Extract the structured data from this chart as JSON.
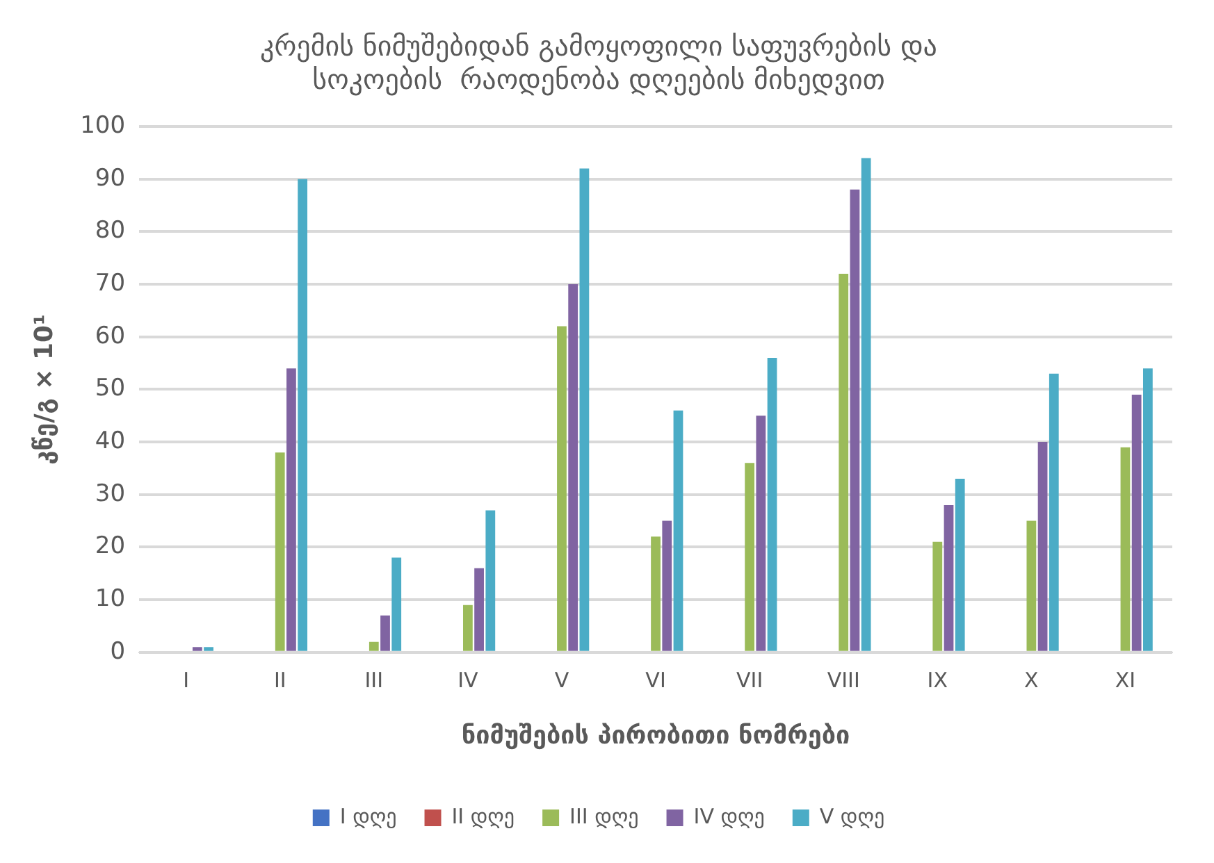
{
  "chart_data": {
    "type": "bar",
    "title": "კრემის ნიმუშებიდან გამოყოფილი საფუვრების და\nსოკოების  რაოდენობა დღეების მიხედვით",
    "xlabel": "ნიმუშების პირობითი ნომრები",
    "ylabel": "კწე/გ × 10¹",
    "categories": [
      "I",
      "II",
      "III",
      "IV",
      "V",
      "VI",
      "VII",
      "VIII",
      "IX",
      "X",
      "XI"
    ],
    "series": [
      {
        "name": "I დღე",
        "color": "#4472c4",
        "values": [
          0,
          0,
          0,
          0,
          0,
          0,
          0,
          0,
          0,
          0,
          0
        ]
      },
      {
        "name": "II დღე",
        "color": "#c0504d",
        "values": [
          0,
          0,
          0,
          0,
          0,
          0,
          0,
          0,
          0,
          0,
          0
        ]
      },
      {
        "name": "III დღე",
        "color": "#9bbb59",
        "values": [
          0,
          38,
          2,
          9,
          62,
          22,
          36,
          72,
          21,
          25,
          39
        ]
      },
      {
        "name": "IV დღე",
        "color": "#8064a2",
        "values": [
          1,
          54,
          7,
          16,
          70,
          25,
          45,
          88,
          28,
          40,
          49
        ]
      },
      {
        "name": "V დღე",
        "color": "#4bacc6",
        "values": [
          1,
          90,
          18,
          27,
          92,
          46,
          56,
          94,
          33,
          53,
          54
        ]
      }
    ],
    "ylim": [
      0,
      100
    ],
    "yticks": [
      0,
      10,
      20,
      30,
      40,
      50,
      60,
      70,
      80,
      90,
      100
    ],
    "grid": "y",
    "legend": "bottom"
  }
}
